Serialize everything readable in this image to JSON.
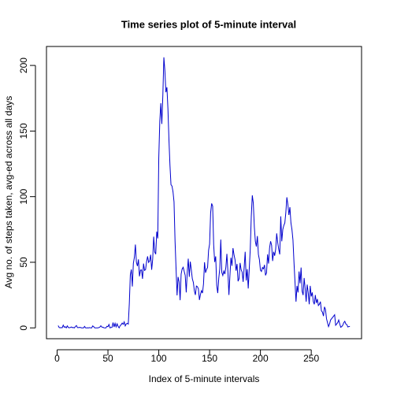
{
  "chart_data": {
    "type": "line",
    "title": "Time series plot of 5-minute interval",
    "x_label": "Index of 5-minute intervals",
    "y_label": "Avg no. of steps taken, avg-ed across all days",
    "x": [
      1,
      2,
      3,
      4,
      5,
      6,
      7,
      8,
      9,
      10,
      11,
      12,
      13,
      14,
      15,
      16,
      17,
      18,
      19,
      20,
      21,
      22,
      23,
      24,
      25,
      26,
      27,
      28,
      29,
      30,
      31,
      32,
      33,
      34,
      35,
      36,
      37,
      38,
      39,
      40,
      41,
      42,
      43,
      44,
      45,
      46,
      47,
      48,
      49,
      50,
      51,
      52,
      53,
      54,
      55,
      56,
      57,
      58,
      59,
      60,
      61,
      62,
      63,
      64,
      65,
      66,
      67,
      68,
      69,
      70,
      71,
      72,
      73,
      74,
      75,
      76,
      77,
      78,
      79,
      80,
      81,
      82,
      83,
      84,
      85,
      86,
      87,
      88,
      89,
      90,
      91,
      92,
      93,
      94,
      95,
      96,
      97,
      98,
      99,
      100,
      101,
      102,
      103,
      104,
      105,
      106,
      107,
      108,
      109,
      110,
      111,
      112,
      113,
      114,
      115,
      116,
      117,
      118,
      119,
      120,
      121,
      122,
      123,
      124,
      125,
      126,
      127,
      128,
      129,
      130,
      131,
      132,
      133,
      134,
      135,
      136,
      137,
      138,
      139,
      140,
      141,
      142,
      143,
      144,
      145,
      146,
      147,
      148,
      149,
      150,
      151,
      152,
      153,
      154,
      155,
      156,
      157,
      158,
      159,
      160,
      161,
      162,
      163,
      164,
      165,
      166,
      167,
      168,
      169,
      170,
      171,
      172,
      173,
      174,
      175,
      176,
      177,
      178,
      179,
      180,
      181,
      182,
      183,
      184,
      185,
      186,
      187,
      188,
      189,
      190,
      191,
      192,
      193,
      194,
      195,
      196,
      197,
      198,
      199,
      200,
      201,
      202,
      203,
      204,
      205,
      206,
      207,
      208,
      209,
      210,
      211,
      212,
      213,
      214,
      215,
      216,
      217,
      218,
      219,
      220,
      221,
      222,
      223,
      224,
      225,
      226,
      227,
      228,
      229,
      230,
      231,
      232,
      233,
      234,
      235,
      236,
      237,
      238,
      239,
      240,
      241,
      242,
      243,
      244,
      245,
      246,
      247,
      248,
      249,
      250,
      251,
      252,
      253,
      254,
      255,
      256,
      257,
      258,
      259,
      260,
      261,
      262,
      263,
      264,
      265,
      266,
      267,
      268,
      269,
      270,
      271,
      272,
      273,
      274,
      275,
      276,
      277,
      278,
      279,
      280,
      281,
      282,
      283,
      284,
      285,
      286,
      287,
      288
    ],
    "series": [
      {
        "color": "#0000cd",
        "values": [
          1.7,
          0.3,
          0.1,
          0.2,
          0.1,
          2.1,
          0.5,
          0.9,
          0,
          1.5,
          0.3,
          0.1,
          0.3,
          0.7,
          0.2,
          0.3,
          0,
          1.1,
          1.8,
          0.2,
          0.2,
          0.4,
          0.3,
          0,
          0,
          0,
          1.1,
          0,
          0,
          0.1,
          0,
          0.2,
          0,
          0,
          1.5,
          0.9,
          0,
          0,
          0,
          0,
          0.2,
          0.6,
          1.6,
          0.6,
          0.5,
          0.1,
          0,
          0,
          1.2,
          0.9,
          2.6,
          0,
          0.3,
          0.4,
          4.1,
          0.7,
          3.5,
          0.8,
          3.1,
          1.1,
          0,
          1.7,
          2.4,
          3.7,
          2.7,
          4.6,
          1.5,
          3.0,
          3.5,
          2.9,
          18.3,
          40.2,
          44.5,
          31.5,
          49.3,
          53.8,
          63.5,
          50.0,
          47.1,
          52.2,
          39.3,
          44.0,
          44.2,
          37.4,
          49.0,
          43.8,
          44.4,
          50.5,
          54.5,
          49.9,
          51.0,
          55.7,
          44.3,
          52.3,
          69.5,
          57.8,
          56.2,
          73.4,
          68.2,
          129.4,
          157.5,
          171.2,
          155.4,
          177.3,
          206.2,
          195.9,
          179.6,
          183.4,
          167.0,
          143.5,
          124.0,
          109.1,
          108.1,
          103.7,
          96.0,
          66.2,
          45.2,
          24.8,
          38.8,
          35.0,
          21.1,
          41.0,
          44.9,
          46.2,
          43.1,
          40.0,
          27.0,
          42.4,
          52.7,
          38.9,
          50.5,
          44.3,
          37.4,
          34.7,
          28.3,
          25.1,
          31.9,
          31.4,
          29.7,
          21.3,
          25.5,
          28.4,
          26.5,
          33.4,
          50.0,
          42.0,
          44.6,
          46.0,
          59.2,
          63.9,
          87.6,
          94.8,
          92.8,
          63.4,
          50.2,
          54.5,
          32.4,
          26.5,
          37.7,
          45.1,
          67.3,
          42.3,
          39.9,
          43.3,
          41.0,
          46.2,
          56.4,
          42.8,
          25.1,
          40.0,
          53.5,
          47.3,
          60.8,
          55.8,
          52.0,
          43.6,
          48.7,
          35.5,
          37.5,
          49.5,
          44.4,
          42.5,
          35.1,
          46.1,
          58.0,
          36.1,
          44.8,
          30.0,
          45.0,
          60.0,
          85.0,
          101.0,
          95.0,
          77.0,
          66.0,
          62.0,
          70.0,
          56.0,
          52.0,
          44.0,
          43.0,
          46.0,
          45.0,
          48.0,
          40.0,
          42.0,
          56.0,
          49.0,
          61.0,
          66.0,
          63.0,
          51.0,
          58.0,
          55.0,
          60.0,
          72.0,
          65.0,
          60.0,
          56.0,
          85.0,
          66.0,
          75.0,
          78.0,
          80.0,
          88.0,
          99.5,
          94.0,
          86.0,
          92.0,
          80.0,
          75.0,
          67.0,
          50.0,
          35.0,
          20.0,
          32.0,
          27.0,
          43.0,
          34.0,
          46.0,
          28.0,
          25.0,
          38.0,
          30.0,
          20.0,
          33.0,
          27.0,
          18.0,
          32.0,
          24.0,
          27.0,
          20.0,
          18.0,
          25.0,
          19.0,
          22.0,
          17.0,
          18.0,
          20.0,
          13.0,
          12.0,
          9.0,
          16.0,
          14.0,
          7.0,
          4.0,
          1.0,
          3.0,
          6.0,
          7.0,
          8.0,
          9.0,
          10.0,
          2.0,
          3.0,
          4.0,
          6.0,
          3.0,
          0.5,
          1.0,
          2.0,
          4.0,
          5.0,
          3.0,
          2.5,
          0.7,
          1.0,
          1.1
        ]
      }
    ],
    "xlim": [
      -10.48,
      299.48
    ],
    "ylim": [
      -8.25,
      214.45
    ],
    "xticks": [
      0,
      50,
      100,
      150,
      200,
      250
    ],
    "yticks": [
      0,
      50,
      100,
      150,
      200
    ],
    "grid": false
  }
}
